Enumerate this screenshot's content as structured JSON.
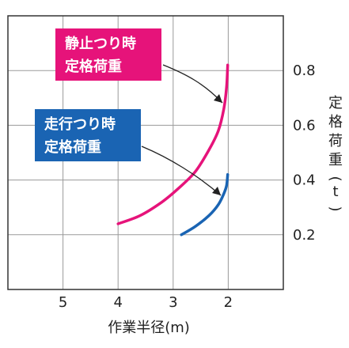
{
  "chart_data": {
    "type": "line",
    "xlabel": "作業半径(m)",
    "ylabel": "定格荷重(t)",
    "x_ticks": [
      "5",
      "4",
      "3",
      "2"
    ],
    "y_ticks": [
      "0.2",
      "0.4",
      "0.6",
      "0.8"
    ],
    "xlim": [
      6,
      1
    ],
    "ylim": [
      0,
      1
    ],
    "grid": true,
    "series": [
      {
        "name": "静止つり時定格荷重",
        "color": "#e6137a",
        "points": [
          [
            4.0,
            0.24
          ],
          [
            3.6,
            0.27
          ],
          [
            3.2,
            0.32
          ],
          [
            2.9,
            0.37
          ],
          [
            2.6,
            0.43
          ],
          [
            2.35,
            0.51
          ],
          [
            2.18,
            0.58
          ],
          [
            2.08,
            0.66
          ],
          [
            2.03,
            0.74
          ],
          [
            2.01,
            0.82
          ]
        ]
      },
      {
        "name": "走行つり時定格荷重",
        "color": "#1a64b3",
        "points": [
          [
            2.85,
            0.2
          ],
          [
            2.6,
            0.23
          ],
          [
            2.35,
            0.27
          ],
          [
            2.18,
            0.31
          ],
          [
            2.08,
            0.35
          ],
          [
            2.03,
            0.38
          ],
          [
            2.01,
            0.42
          ]
        ]
      }
    ],
    "annotations": [
      {
        "lines": [
          "静止つり時",
          "定格荷重"
        ],
        "color": "#e6137a",
        "target": [
          2.12,
          0.66
        ]
      },
      {
        "lines": [
          "走行つり時",
          "定格荷重"
        ],
        "color": "#1a64b3",
        "target": [
          2.12,
          0.34
        ]
      }
    ]
  }
}
